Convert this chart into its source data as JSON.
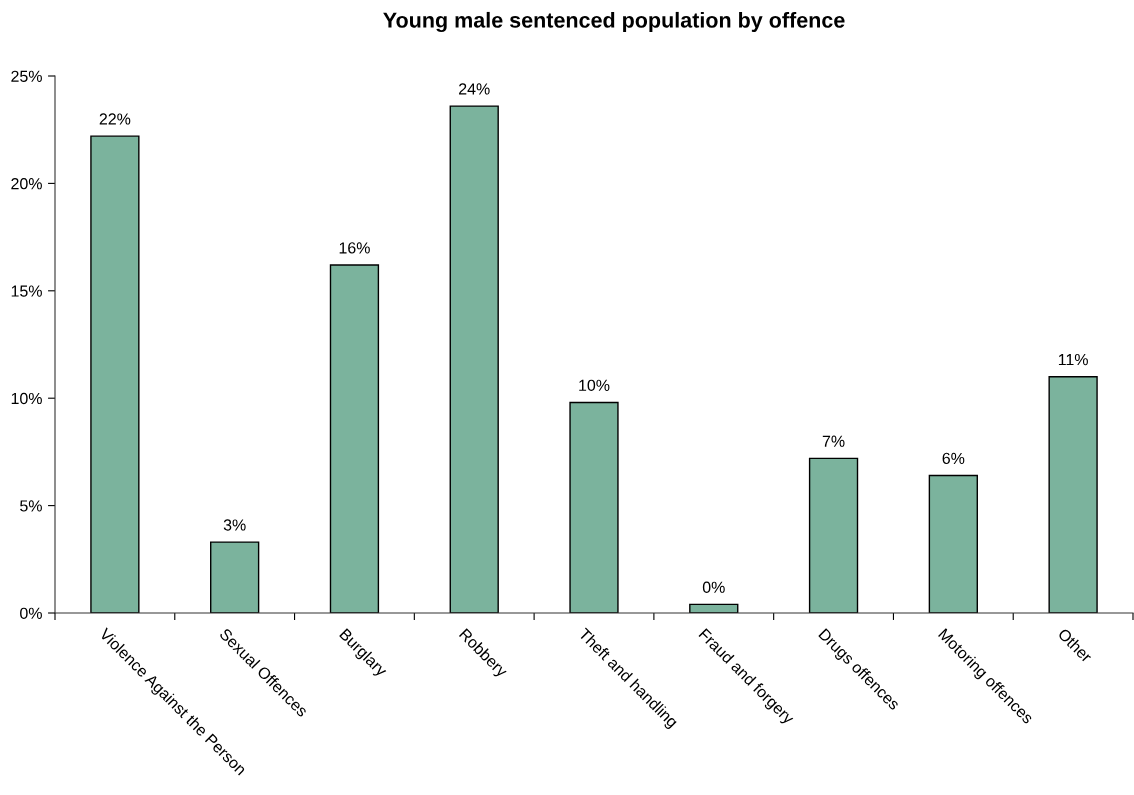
{
  "chart_data": {
    "type": "bar",
    "title": "Young male sentenced population by offence",
    "categories": [
      "Violence Against the Person",
      "Sexual Offences",
      "Burglary",
      "Robbery",
      "Theft and handling",
      "Fraud and forgery",
      "Drugs offences",
      "Motoring offences",
      "Other"
    ],
    "values": [
      22.2,
      3.3,
      16.2,
      23.6,
      9.8,
      0.4,
      7.2,
      6.4,
      11.0
    ],
    "value_labels": [
      "22%",
      "3%",
      "16%",
      "24%",
      "10%",
      "0%",
      "7%",
      "6%",
      "11%"
    ],
    "color": "#7bb39d",
    "ylim": [
      0,
      25
    ],
    "yticks": [
      {
        "value": 0,
        "label": "0%"
      },
      {
        "value": 5,
        "label": "5%"
      },
      {
        "value": 10,
        "label": "10%"
      },
      {
        "value": 15,
        "label": "15%"
      },
      {
        "value": 20,
        "label": "20%"
      },
      {
        "value": 25,
        "label": "25%"
      }
    ],
    "grid": false
  }
}
